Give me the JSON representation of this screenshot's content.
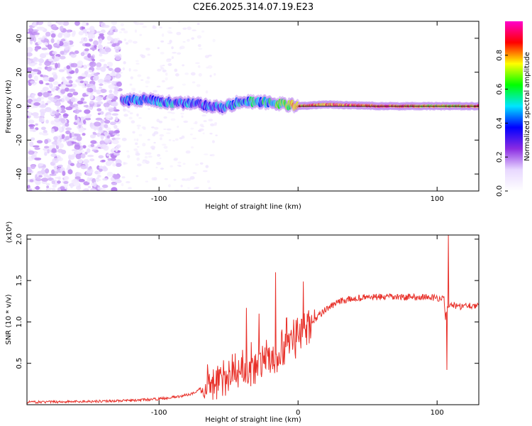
{
  "figure_title": "C2E6.2025.314.07.19.E23",
  "chart_data": [
    {
      "type": "heatmap",
      "title": "",
      "xlabel": "Height of straight line (km)",
      "ylabel": "Frequency (Hz)",
      "xlim": [
        -195,
        130
      ],
      "ylim": [
        -50,
        50
      ],
      "xticks": [
        -100,
        0,
        100
      ],
      "xtick_labels": [
        "-100",
        "",
        "100"
      ],
      "yticks": [
        40,
        20,
        0,
        -20,
        -40
      ],
      "ytick_labels": [
        "40",
        "20",
        "0",
        "-20",
        "-40"
      ],
      "colorbar": {
        "label": "Normalized spectral amplitude",
        "range": [
          0,
          1
        ],
        "ticks": [
          0.0,
          0.2,
          0.4,
          0.6,
          0.8
        ],
        "tick_labels": [
          "0.0",
          "0.2",
          "0.4",
          "0.6",
          "0.8"
        ],
        "colors": [
          "#ffffff",
          "#e8d8ff",
          "#8a2be2",
          "#0000ff",
          "#00e5ff",
          "#00ff00",
          "#ffff00",
          "#ff0000",
          "#ff00cc"
        ]
      },
      "ridge": {
        "description": "narrow band centred on 0 Hz",
        "x": [
          -127,
          -110,
          -90,
          -70,
          -55,
          -40,
          -20,
          0,
          20,
          60,
          100,
          130
        ],
        "freq": [
          3,
          4,
          2,
          1,
          -1,
          3,
          2,
          0,
          1,
          0,
          0,
          0
        ],
        "amplitude": [
          0.45,
          0.5,
          0.5,
          0.45,
          0.5,
          0.55,
          0.6,
          0.85,
          0.9,
          0.95,
          0.8,
          0.9
        ]
      },
      "noise_region": {
        "x": [
          -195,
          -128
        ],
        "amplitude": [
          0.05,
          0.2
        ]
      }
    },
    {
      "type": "line",
      "title": "",
      "xlabel": "Height of straight line (km)",
      "ylabel": "SNR (10 * v/v)",
      "yscale_label": "(x10⁴)",
      "xlim": [
        -195,
        130
      ],
      "ylim": [
        0,
        2.05
      ],
      "xticks": [
        -100,
        0,
        100
      ],
      "xtick_labels": [
        "-100",
        "0",
        "100"
      ],
      "yticks": [
        0.5,
        1.0,
        1.5,
        2.0
      ],
      "ytick_labels": [
        "0.5",
        "1.0",
        "1.5",
        "2.0"
      ],
      "series": [
        {
          "name": "SNR",
          "color": "#e8312a",
          "x": [
            -195,
            -150,
            -120,
            -100,
            -85,
            -75,
            -70,
            -65,
            -55,
            -45,
            -35,
            -25,
            -15,
            -10,
            -5,
            0,
            5,
            10,
            20,
            30,
            40,
            50,
            60,
            80,
            95,
            105,
            106,
            108,
            110,
            115,
            120,
            130
          ],
          "y": [
            0.03,
            0.04,
            0.05,
            0.07,
            0.1,
            0.14,
            0.2,
            0.25,
            0.3,
            0.4,
            0.45,
            0.5,
            0.55,
            0.65,
            0.75,
            0.85,
            0.95,
            1.0,
            1.15,
            1.25,
            1.28,
            1.3,
            1.3,
            1.3,
            1.3,
            1.28,
            1.05,
            1.2,
            1.22,
            1.18,
            1.2,
            1.2
          ]
        }
      ],
      "spikes": [
        {
          "x": -37,
          "y": 1.17
        },
        {
          "x": -28,
          "y": 1.1
        },
        {
          "x": -16,
          "y": 1.6
        },
        {
          "x": -8,
          "y": 1.05
        },
        {
          "x": 12,
          "y": 1.15
        },
        {
          "x": 108,
          "y": 2.05
        },
        {
          "x": 107,
          "y": 0.42
        }
      ]
    }
  ]
}
